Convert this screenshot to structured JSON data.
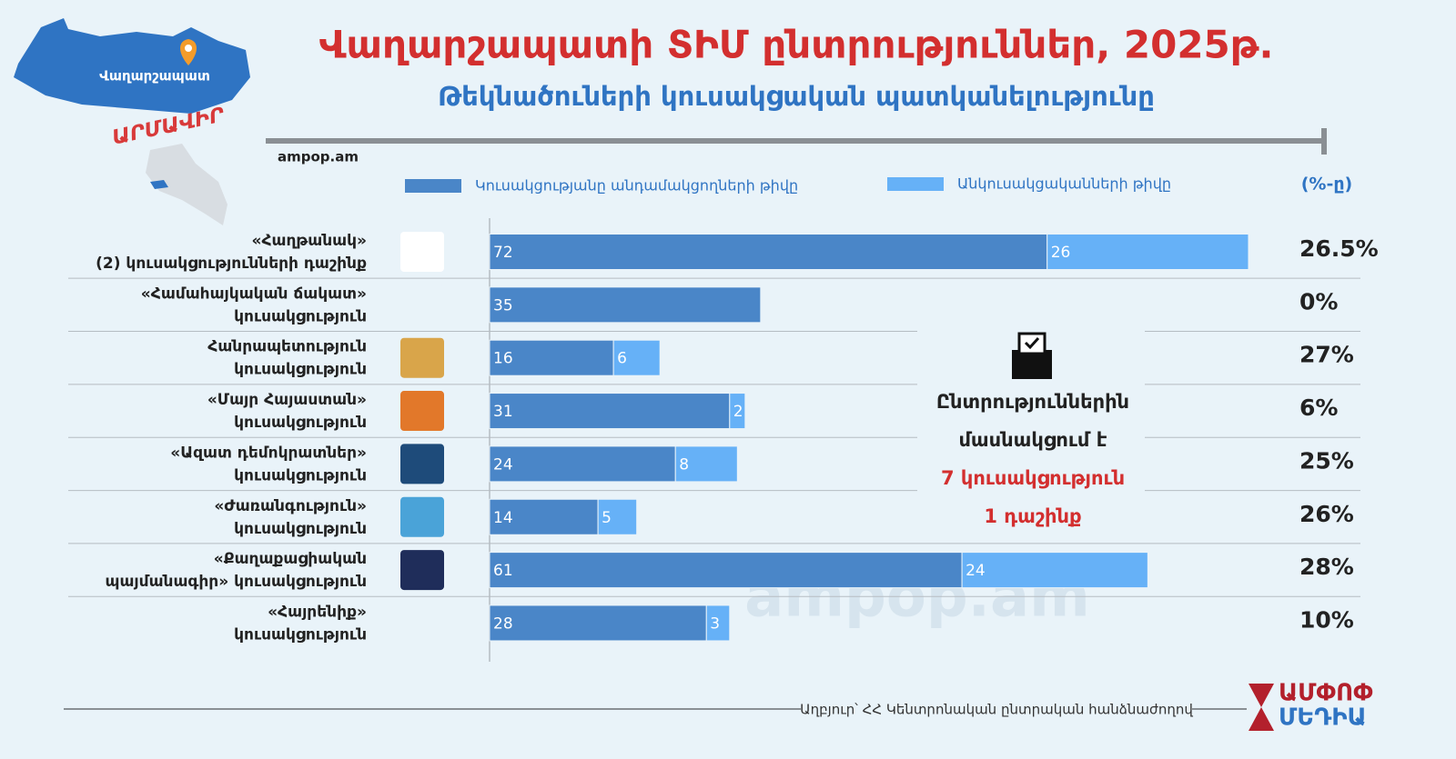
{
  "chart_data": {
    "type": "stacked-barh",
    "title": "Վաղարշապատի ՏԻՄ ընտրություններ, 2025թ.",
    "subtitle": "Թեկնածուների կուսակցական պատկանելությունը",
    "site": "ampop.am",
    "map_labels": {
      "city": "Վաղարշապատ",
      "region": "ԱՐՄԱՎԻՐ"
    },
    "categories": [
      [
        "«Հաղթանակ»",
        "(2) կուսակցությունների դաշինք"
      ],
      [
        "«Համահայկական ճակատ»",
        "կուսակցություն"
      ],
      [
        "Հանրապետություն",
        "կուսակցություն"
      ],
      [
        "«Մայր Հայաստան»",
        "կուսակցություն"
      ],
      [
        "«Ազատ դեմոկրատներ»",
        "կուսակցություն"
      ],
      [
        "«Ժառանգություն»",
        "կուսակցություն"
      ],
      [
        "«Քաղաքացիական",
        "պայմանագիր» կուսակցություն"
      ],
      [
        "«Հայրենիք»",
        "կուսակցություն"
      ]
    ],
    "series": [
      {
        "name": "Կուսակցությանը անդամակցողների թիվը",
        "color": "#4a86c8",
        "values": [
          72,
          35,
          16,
          31,
          24,
          14,
          61,
          28
        ]
      },
      {
        "name": "Անկուսակցականների թիվը",
        "color": "#66b1f7",
        "values": [
          26,
          null,
          6,
          2,
          8,
          5,
          24,
          3
        ]
      }
    ],
    "percent": {
      "header": "(%-ը)",
      "values": [
        26.5,
        0,
        27,
        6,
        25,
        26,
        28,
        10
      ],
      "value_labels": [
        "26.5%",
        "0%",
        "27%",
        "6%",
        "25%",
        "26%",
        "28%",
        "10%"
      ]
    },
    "annotation": [
      "Ընտրություններին",
      "մասնակցում է",
      "7 կուսակցություն",
      "1 դաշինք"
    ],
    "watermark": "ampop.am",
    "source": "Աղբյուր՝ ՀՀ Կենտրոնական ընտրական հանձնաժողով",
    "logo": [
      "ԱՄՓՈՓ",
      "ՄԵԴԻԱ"
    ]
  }
}
